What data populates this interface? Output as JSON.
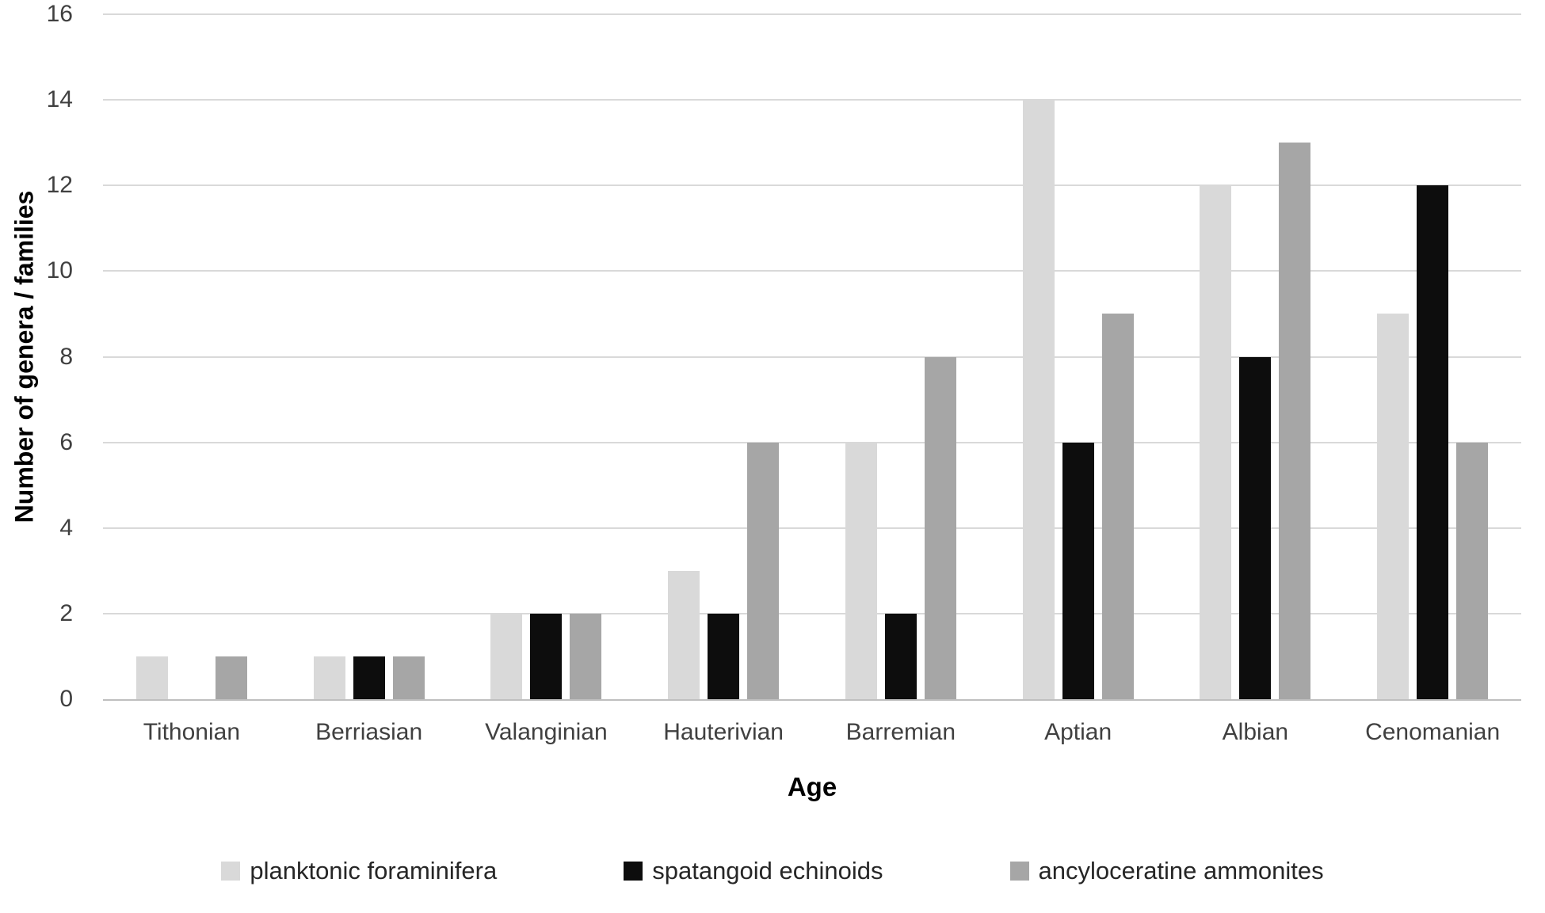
{
  "chart_data": {
    "type": "bar",
    "title": "",
    "xlabel": "Age",
    "ylabel": "Number of genera / families",
    "categories": [
      "Tithonian",
      "Berriasian",
      "Valanginian",
      "Hauterivian",
      "Barremian",
      "Aptian",
      "Albian",
      "Cenomanian"
    ],
    "series": [
      {
        "name": "planktonic foraminifera",
        "color": "#d9d9d9",
        "values": [
          1,
          1,
          2,
          3,
          6,
          14,
          12,
          9
        ]
      },
      {
        "name": "spatangoid echinoids",
        "color": "#0d0d0d",
        "values": [
          0,
          1,
          2,
          2,
          2,
          6,
          8,
          12
        ]
      },
      {
        "name": "ancyloceratine ammonites",
        "color": "#a6a6a6",
        "values": [
          1,
          1,
          2,
          6,
          8,
          9,
          13,
          6
        ]
      }
    ],
    "ylim": [
      0,
      16
    ],
    "yticks": [
      0,
      2,
      4,
      6,
      8,
      10,
      12,
      14,
      16
    ],
    "grid": "horizontal",
    "legend_position": "bottom",
    "colors": {
      "gridline": "#d9d9d9",
      "axis_line": "#bfbfbf",
      "tick_text": "#404040",
      "title_text": "#000000",
      "background": "#ffffff"
    }
  }
}
